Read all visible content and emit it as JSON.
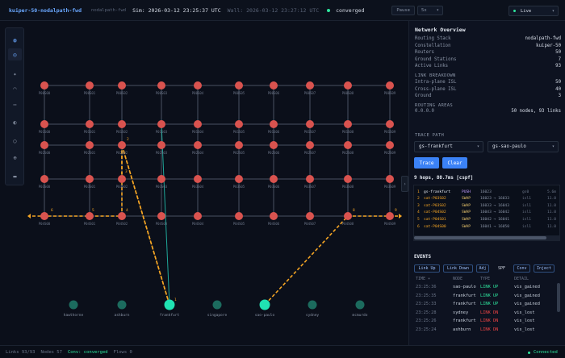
{
  "topbar": {
    "title": "kuiper-50-nodalpath-fwd",
    "subtitle": "nodalpath-fwd",
    "sim": "Sim: 2026-03-12 23:25:37 UTC",
    "wall": "Wall: 2026-03-12 23:27:12 UTC",
    "status": "converged",
    "pause_label": "Pause",
    "speed_value": "5x",
    "live_label": "Live"
  },
  "tools": [
    "globe-icon",
    "target-icon",
    "satellite-icon",
    "orbit-icon",
    "link-icon",
    "layers-icon",
    "clock-icon",
    "settings-icon",
    "panel-icon"
  ],
  "network": {
    "title": "Network Overview",
    "rows": [
      {
        "k": "Routing Stack",
        "v": "nodalpath-fwd"
      },
      {
        "k": "Constellation",
        "v": "kuiper-50"
      },
      {
        "k": "Routers",
        "v": "50"
      },
      {
        "k": "Ground Stations",
        "v": "7"
      },
      {
        "k": "Active Links",
        "v": "93"
      }
    ],
    "breakdown_title": "LINK BREAKDOWN",
    "breakdown": [
      {
        "k": "Intra-plane ISL",
        "v": "50"
      },
      {
        "k": "Cross-plane ISL",
        "v": "40"
      },
      {
        "k": "Ground",
        "v": "3"
      }
    ],
    "areas_title": "ROUTING AREAS",
    "area_id": "0.0.0.0",
    "area_summary": "50 nodes, 93 links"
  },
  "trace": {
    "title": "TRACE PATH",
    "from": "gs-frankfurt",
    "to": "gs-sao-paulo",
    "trace_label": "Trace",
    "clear_label": "Clear",
    "summary": "9 hops, 80.7ms [cspf]",
    "hops": [
      {
        "n": "1",
        "node": "gs-frankfurt",
        "op": "PUSH",
        "label": "16023",
        "metric": "gs0",
        "lat": "5.6m"
      },
      {
        "n": "2",
        "node": "sat-P03S02",
        "op": "SWAP",
        "label": "16023 → 16033",
        "metric": "isl1",
        "lat": "11.0"
      },
      {
        "n": "3",
        "node": "sat-P03S02",
        "op": "SWAP",
        "label": "16033 → 16043",
        "metric": "isl1",
        "lat": "11.0"
      },
      {
        "n": "4",
        "node": "sat-P04S02",
        "op": "SWAP",
        "label": "16043 → 16042",
        "metric": "isl1",
        "lat": "11.0"
      },
      {
        "n": "5",
        "node": "sat-P04S01",
        "op": "SWAP",
        "label": "16042 → 16041",
        "metric": "isl1",
        "lat": "11.0"
      },
      {
        "n": "6",
        "node": "sat-P04S00",
        "op": "SWAP",
        "label": "16041 → 16050",
        "metric": "isl1",
        "lat": "11.0"
      }
    ]
  },
  "events": {
    "title": "EVENTS",
    "filters": [
      "Link Up",
      "Link Down",
      "Adj",
      "SPF",
      "Conv",
      "Inject"
    ],
    "columns": [
      "TIME ▾",
      "NODE",
      "TYPE",
      "DETAIL"
    ],
    "rows": [
      {
        "time": "23:25:36",
        "node": "sao-paulo",
        "type": "LINK UP",
        "detail": "vis_gained",
        "up": true
      },
      {
        "time": "23:25:35",
        "node": "frankfurt",
        "type": "LINK UP",
        "detail": "vis_gained",
        "up": true
      },
      {
        "time": "23:25:33",
        "node": "frankfurt",
        "type": "LINK UP",
        "detail": "vis_gained",
        "up": true
      },
      {
        "time": "23:25:28",
        "node": "sydney",
        "type": "LINK DN",
        "detail": "vis_lost",
        "up": false
      },
      {
        "time": "23:25:26",
        "node": "frankfurt",
        "type": "LINK DN",
        "detail": "vis_lost",
        "up": false
      },
      {
        "time": "23:25:24",
        "node": "ashburn",
        "type": "LINK DN",
        "detail": "vis_lost",
        "up": false
      }
    ]
  },
  "footer": {
    "links": "Links 93/93",
    "nodes": "Nodes 57",
    "conv": "Conv: converged",
    "flows": "Flows 0",
    "connected": "Connected"
  },
  "map": {
    "row0_labels": [
      "P00S00",
      "P00S01",
      "P00S02",
      "P00S03",
      "P00S04",
      "P00S05",
      "P00S06",
      "P00S07",
      "P00S08",
      "P00S09"
    ],
    "row4_labels": [
      "P04S00",
      "P04S01",
      "P04S02",
      "P04S03",
      "P04S04",
      "P04S05",
      "P04S06",
      "P04S07",
      "P04S08",
      "P04S09"
    ],
    "grid_mid_labels": [
      [
        "P01S00",
        "P01S01",
        "P01S02",
        "P01S03",
        "P01S04",
        "P01S05",
        "P01S06",
        "P01S07",
        "P01S08",
        "P01S09"
      ],
      [
        "P02S00",
        "P02S01",
        "P02S02",
        "P02S03",
        "P02S04",
        "P02S05",
        "P02S06",
        "P02S07",
        "P02S08",
        "P02S09"
      ],
      [
        "P03S00",
        "P03S01",
        "P03S02",
        "P03S03",
        "P03S04",
        "P03S05",
        "P03S06",
        "P03S07",
        "P03S08",
        "P03S09"
      ]
    ],
    "ground_stations": [
      {
        "name": "hawthorne",
        "active": false
      },
      {
        "name": "ashburn",
        "active": false
      },
      {
        "name": "frankfurt",
        "active": true
      },
      {
        "name": "singapore",
        "active": false
      },
      {
        "name": "sao-paulo",
        "active": true
      },
      {
        "name": "sydney",
        "active": false
      },
      {
        "name": "mcmurdo",
        "active": false
      }
    ],
    "path_hop_labels": [
      "1",
      "2",
      "3",
      "4",
      "5",
      "6",
      "7",
      "8",
      "9"
    ],
    "colors": {
      "sat": "#d9534f",
      "isl": "#4a5263",
      "path": "#f5a524",
      "gs_active": "#20e3b2",
      "gs_idle": "#1c6b5e",
      "teal_link": "#1fa89a"
    }
  }
}
